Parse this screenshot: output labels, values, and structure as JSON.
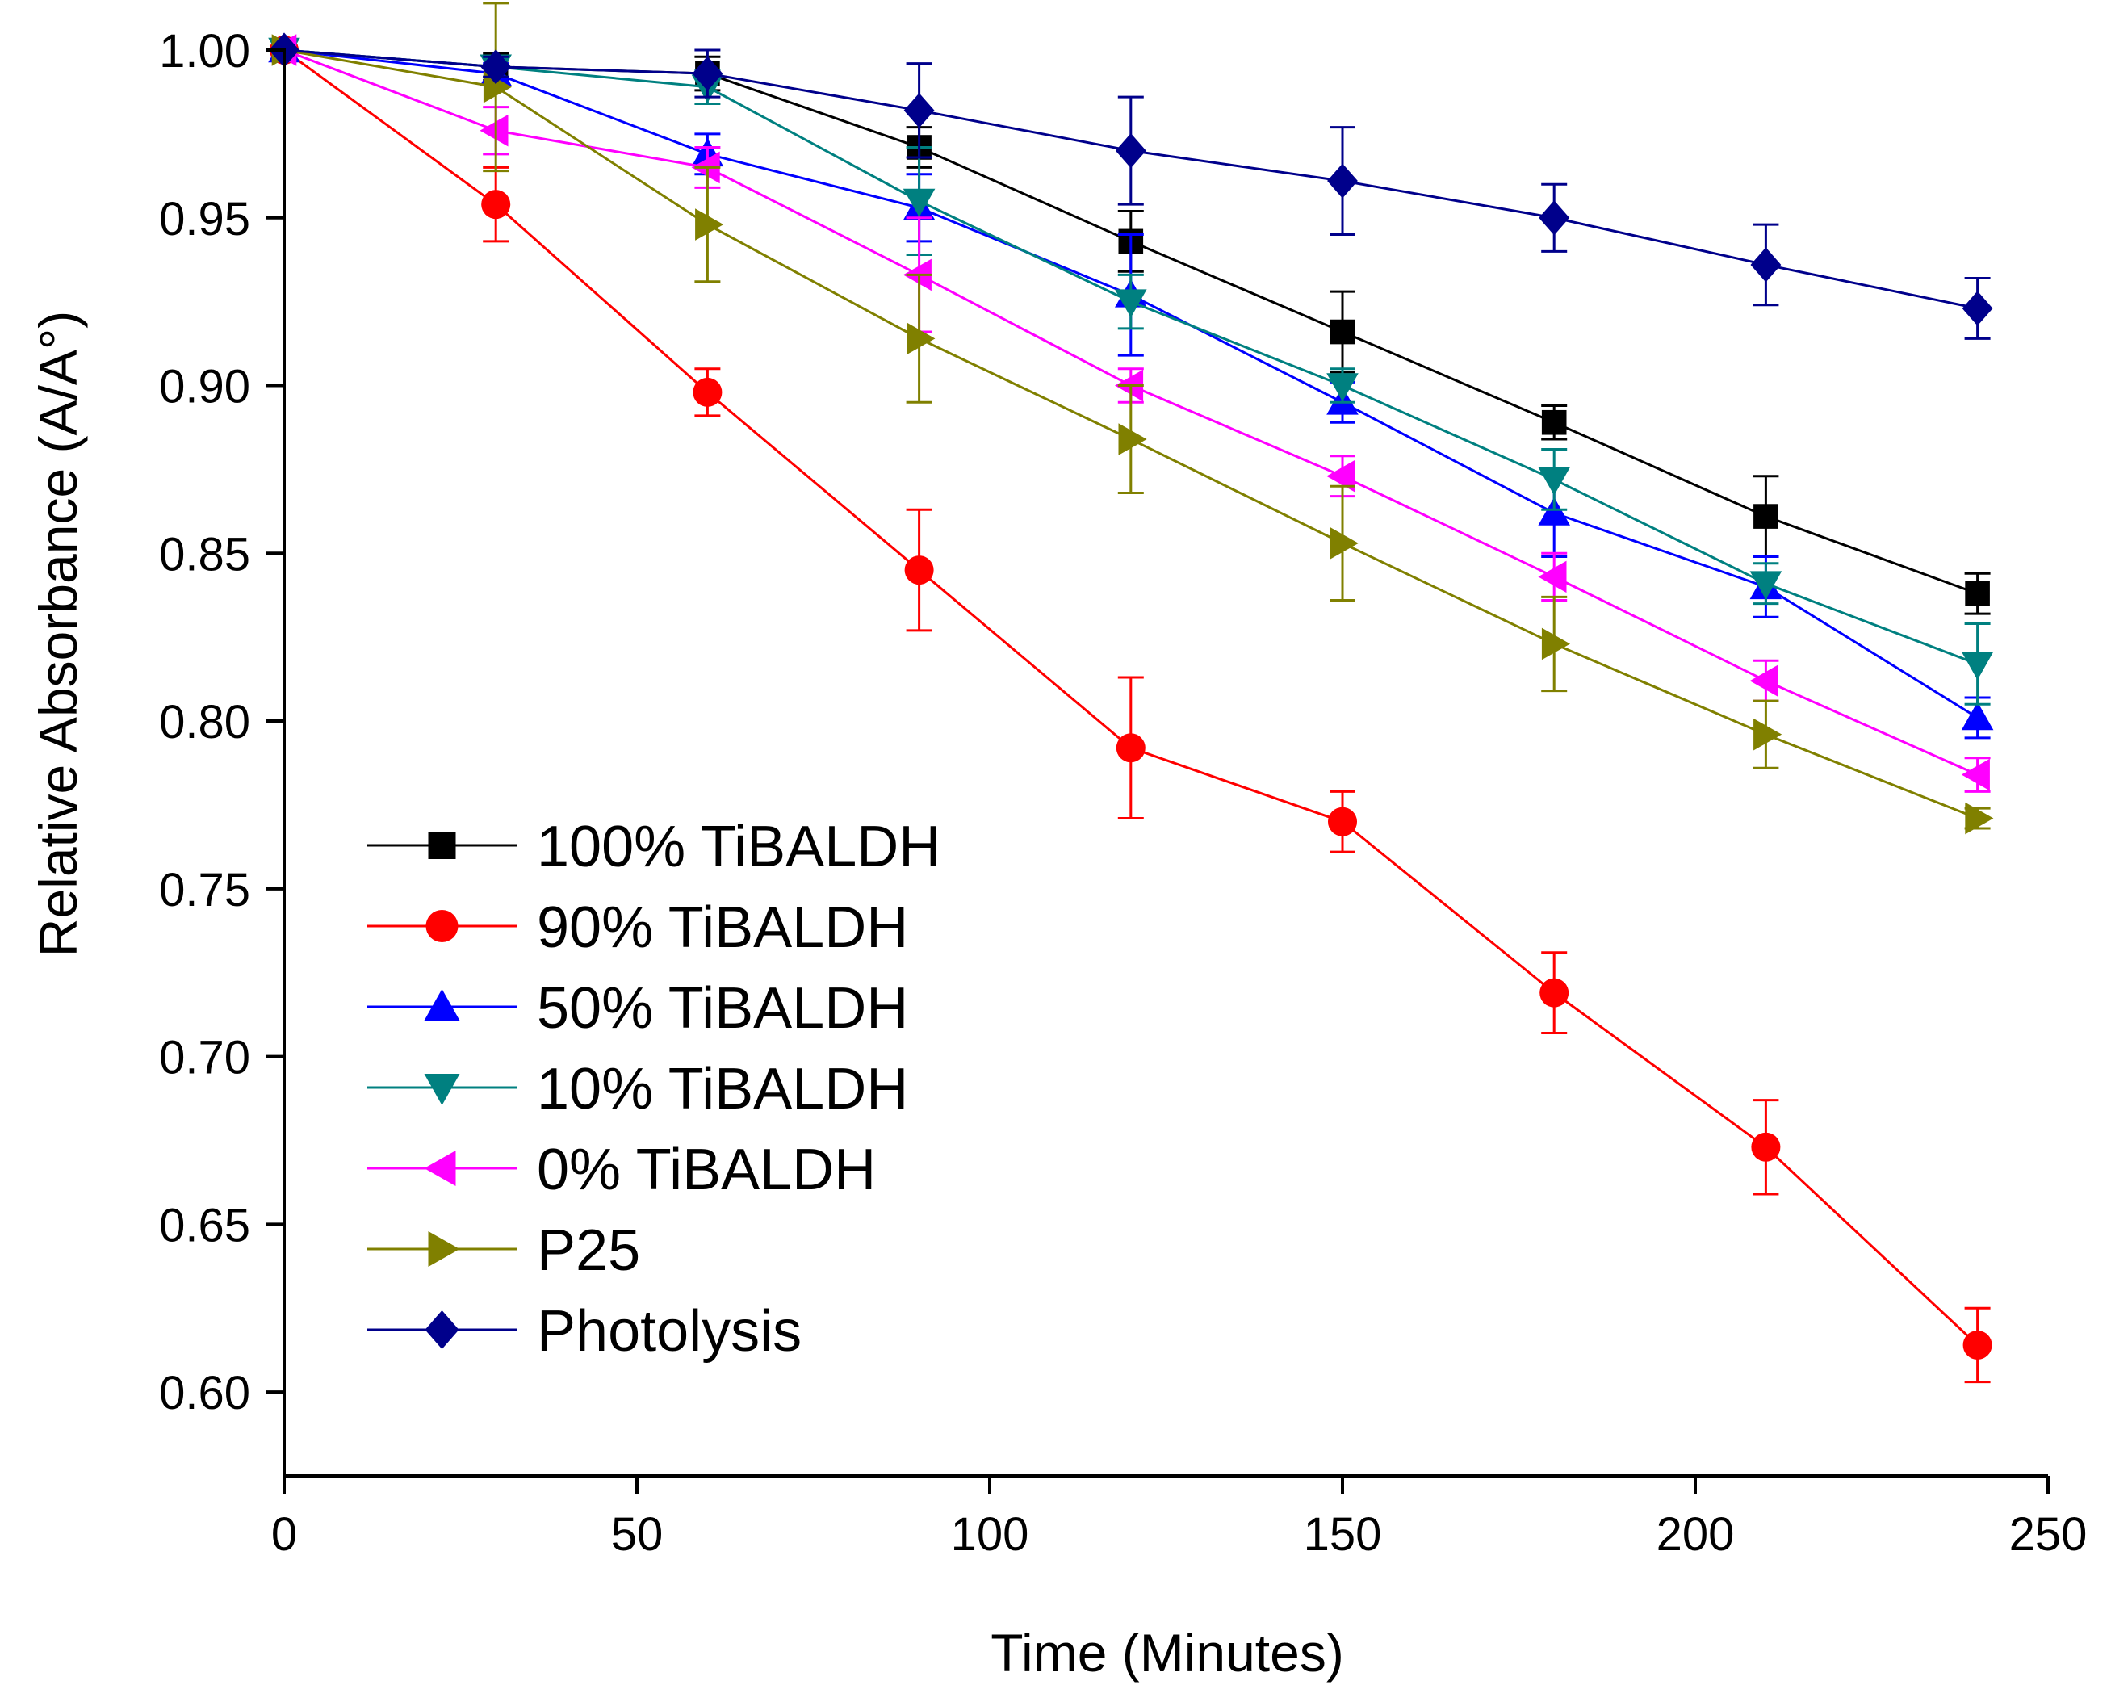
{
  "chart_data": {
    "type": "line",
    "title": "",
    "xlabel": "Time (Minutes)",
    "ylabel": "Relative Absorbance (A/A°)",
    "xlim": [
      0,
      250
    ],
    "ylim": [
      0.575,
      1.0
    ],
    "x_ticks": [
      0,
      50,
      100,
      150,
      200,
      250
    ],
    "x_tick_labels": [
      "0",
      "50",
      "100",
      "150",
      "200",
      "250"
    ],
    "y_ticks": [
      0.6,
      0.65,
      0.7,
      0.75,
      0.8,
      0.85,
      0.9,
      0.95,
      1.0
    ],
    "y_tick_labels": [
      "0.60",
      "0.65",
      "0.70",
      "0.75",
      "0.80",
      "0.85",
      "0.90",
      "0.95",
      "1.00"
    ],
    "grid": false,
    "legend_position": "lower-left",
    "series": [
      {
        "name": "100% TiBALDH",
        "color": "#000000",
        "marker": "square",
        "x": [
          0,
          30,
          60,
          90,
          120,
          150,
          180,
          210,
          240
        ],
        "y": [
          1.0,
          0.995,
          0.993,
          0.971,
          0.943,
          0.916,
          0.889,
          0.861,
          0.838
        ],
        "err": [
          0,
          0.004,
          0.005,
          0.006,
          0.009,
          0.012,
          0.005,
          0.012,
          0.006
        ]
      },
      {
        "name": "90% TiBALDH",
        "color": "#ff0000",
        "marker": "circle",
        "x": [
          0,
          30,
          60,
          90,
          120,
          150,
          180,
          210,
          240
        ],
        "y": [
          1.0,
          0.954,
          0.898,
          0.845,
          0.792,
          0.77,
          0.719,
          0.673,
          0.614
        ],
        "err": [
          0,
          0.011,
          0.007,
          0.018,
          0.021,
          0.009,
          0.012,
          0.014,
          0.011
        ]
      },
      {
        "name": "50% TiBALDH",
        "color": "#0000ff",
        "marker": "triangle-up",
        "x": [
          0,
          30,
          60,
          90,
          120,
          150,
          180,
          210,
          240
        ],
        "y": [
          1.0,
          0.993,
          0.969,
          0.953,
          0.927,
          0.895,
          0.862,
          0.84,
          0.801
        ],
        "err": [
          0,
          0.003,
          0.006,
          0.01,
          0.018,
          0.006,
          0.013,
          0.009,
          0.006
        ]
      },
      {
        "name": "10% TiBALDH",
        "color": "#008080",
        "marker": "triangle-down",
        "x": [
          0,
          30,
          60,
          90,
          120,
          150,
          180,
          210,
          240
        ],
        "y": [
          1.0,
          0.995,
          0.989,
          0.955,
          0.925,
          0.9,
          0.872,
          0.841,
          0.817
        ],
        "err": [
          0,
          0.003,
          0.005,
          0.016,
          0.008,
          0.005,
          0.009,
          0.006,
          0.012
        ]
      },
      {
        "name": "0% TiBALDH",
        "color": "#ff00ff",
        "marker": "triangle-left",
        "x": [
          0,
          30,
          60,
          90,
          120,
          150,
          180,
          210,
          240
        ],
        "y": [
          1.0,
          0.976,
          0.965,
          0.933,
          0.9,
          0.873,
          0.843,
          0.812,
          0.784
        ],
        "err": [
          0,
          0.007,
          0.006,
          0.017,
          0.005,
          0.006,
          0.007,
          0.006,
          0.005
        ]
      },
      {
        "name": "P25",
        "color": "#808000",
        "marker": "triangle-right",
        "x": [
          0,
          30,
          60,
          90,
          120,
          150,
          180,
          210,
          240
        ],
        "y": [
          1.0,
          0.989,
          0.948,
          0.914,
          0.884,
          0.853,
          0.823,
          0.796,
          0.771
        ],
        "err": [
          0,
          0.025,
          0.017,
          0.019,
          0.016,
          0.017,
          0.014,
          0.01,
          0.003
        ]
      },
      {
        "name": "Photolysis",
        "color": "#00008b",
        "marker": "diamond",
        "x": [
          0,
          30,
          60,
          90,
          120,
          150,
          180,
          210,
          240
        ],
        "y": [
          1.0,
          0.995,
          0.993,
          0.982,
          0.97,
          0.961,
          0.95,
          0.936,
          0.923
        ],
        "err": [
          0,
          0.003,
          0.007,
          0.014,
          0.016,
          0.016,
          0.01,
          0.012,
          0.009
        ]
      }
    ]
  }
}
